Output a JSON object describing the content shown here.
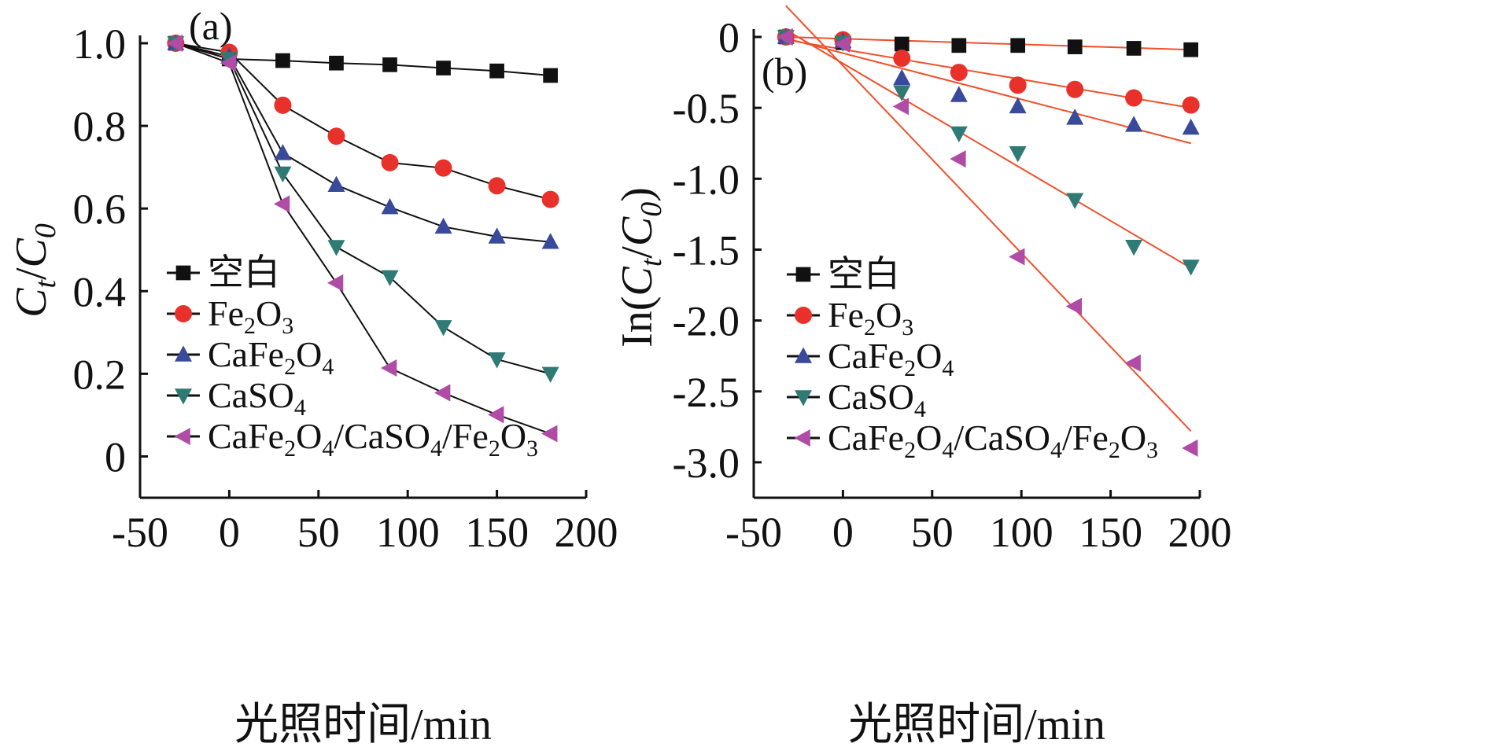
{
  "chart_data": [
    {
      "type": "line",
      "panel_label": "(a)",
      "xlabel": "光照时间/min",
      "ylabel": {
        "main": "C",
        "sub_t": "t",
        "slash": "/",
        "main2": "C",
        "sub_0": "0"
      },
      "xlim": [
        -50,
        200
      ],
      "ylim": [
        -0.1,
        1.0
      ],
      "xticks": [
        -50,
        0,
        50,
        100,
        150,
        200
      ],
      "yticks": [
        0,
        0.2,
        0.4,
        0.6,
        0.8,
        1.0
      ],
      "ytick_labels": [
        "0",
        "0.2",
        "0.4",
        "0.6",
        "0.8",
        "1.0"
      ],
      "legend_position": "bottom-left",
      "series": [
        {
          "name": "空白",
          "marker": "square",
          "color": "#111111",
          "x": [
            -30,
            0,
            30,
            60,
            90,
            120,
            150,
            180
          ],
          "y": [
            1.0,
            0.962,
            0.958,
            0.952,
            0.948,
            0.94,
            0.933,
            0.922
          ]
        },
        {
          "name": "Fe2O3",
          "marker": "circle",
          "color": "#e8312a",
          "x": [
            -30,
            0,
            30,
            60,
            90,
            120,
            150,
            180
          ],
          "y": [
            1.0,
            0.978,
            0.85,
            0.775,
            0.711,
            0.698,
            0.655,
            0.622
          ]
        },
        {
          "name": "CaFe2O4",
          "marker": "triangle-up",
          "color": "#3a4a9a",
          "x": [
            -30,
            0,
            30,
            60,
            90,
            120,
            150,
            180
          ],
          "y": [
            1.0,
            0.968,
            0.734,
            0.657,
            0.603,
            0.556,
            0.532,
            0.519
          ]
        },
        {
          "name": "CaSO4",
          "marker": "triangle-down",
          "color": "#2f7a74",
          "x": [
            -30,
            0,
            30,
            60,
            90,
            120,
            150,
            180
          ],
          "y": [
            1.0,
            0.962,
            0.685,
            0.507,
            0.434,
            0.313,
            0.235,
            0.2
          ]
        },
        {
          "name": "CaFe2O4/CaSO4/Fe2O3",
          "marker": "triangle-left",
          "color": "#b04ca6",
          "x": [
            -30,
            0,
            30,
            60,
            90,
            120,
            150,
            180
          ],
          "y": [
            1.0,
            0.952,
            0.611,
            0.42,
            0.214,
            0.154,
            0.101,
            0.055
          ]
        }
      ]
    },
    {
      "type": "scatter",
      "panel_label": "(b)",
      "xlabel": "光照时间/min",
      "ylabel": {
        "pre": "In(",
        "main": "C",
        "sub_t": "t",
        "slash": "/",
        "main2": "C",
        "sub_0": "0",
        "post": ")"
      },
      "xlim": [
        -50,
        200
      ],
      "ylim": [
        -3.25,
        0
      ],
      "xticks": [
        -50,
        0,
        50,
        100,
        150,
        200
      ],
      "yticks": [
        0,
        -0.5,
        -1.0,
        -1.5,
        -2.0,
        -2.5,
        -3.0
      ],
      "ytick_labels": [
        "0",
        "-0.5",
        "-1.0",
        "-1.5",
        "-2.0",
        "-2.5",
        "-3.0"
      ],
      "legend_position": "bottom-left",
      "fit_line_color": "#f0502a",
      "series": [
        {
          "name": "空白",
          "marker": "square",
          "color": "#111111",
          "x": [
            -32,
            0,
            33,
            65,
            98,
            130,
            163,
            195
          ],
          "y": [
            0,
            -0.04,
            -0.05,
            -0.06,
            -0.06,
            -0.07,
            -0.08,
            -0.09
          ],
          "fit": [
            [
              -32,
              0
            ],
            [
              195,
              -0.09
            ]
          ]
        },
        {
          "name": "Fe2O3",
          "marker": "circle",
          "color": "#e8312a",
          "x": [
            -32,
            0,
            33,
            65,
            98,
            130,
            163,
            195
          ],
          "y": [
            0,
            -0.02,
            -0.15,
            -0.25,
            -0.34,
            -0.37,
            -0.43,
            -0.48
          ],
          "fit": [
            [
              -32,
              -0.02
            ],
            [
              195,
              -0.5
            ]
          ]
        },
        {
          "name": "CaFe2O4",
          "marker": "triangle-up",
          "color": "#3a4a9a",
          "x": [
            -32,
            0,
            33,
            65,
            98,
            130,
            163,
            195
          ],
          "y": [
            0,
            -0.03,
            -0.29,
            -0.41,
            -0.49,
            -0.57,
            -0.62,
            -0.64
          ],
          "fit": [
            [
              -32,
              -0.01
            ],
            [
              195,
              -0.75
            ]
          ]
        },
        {
          "name": "CaSO4",
          "marker": "triangle-down",
          "color": "#2f7a74",
          "x": [
            -32,
            0,
            33,
            65,
            98,
            130,
            163,
            195
          ],
          "y": [
            0,
            -0.04,
            -0.39,
            -0.68,
            -0.82,
            -1.15,
            -1.48,
            -1.62
          ],
          "fit": [
            [
              -32,
              0.05
            ],
            [
              195,
              -1.63
            ]
          ]
        },
        {
          "name": "CaFe2O4/CaSO4/Fe2O3",
          "marker": "triangle-left",
          "color": "#b04ca6",
          "x": [
            -32,
            0,
            33,
            65,
            98,
            130,
            163,
            195
          ],
          "y": [
            0,
            -0.05,
            -0.49,
            -0.86,
            -1.55,
            -1.9,
            -2.3,
            -2.9
          ],
          "fit": [
            [
              -32,
              0.22
            ],
            [
              195,
              -2.78
            ]
          ]
        }
      ]
    }
  ]
}
